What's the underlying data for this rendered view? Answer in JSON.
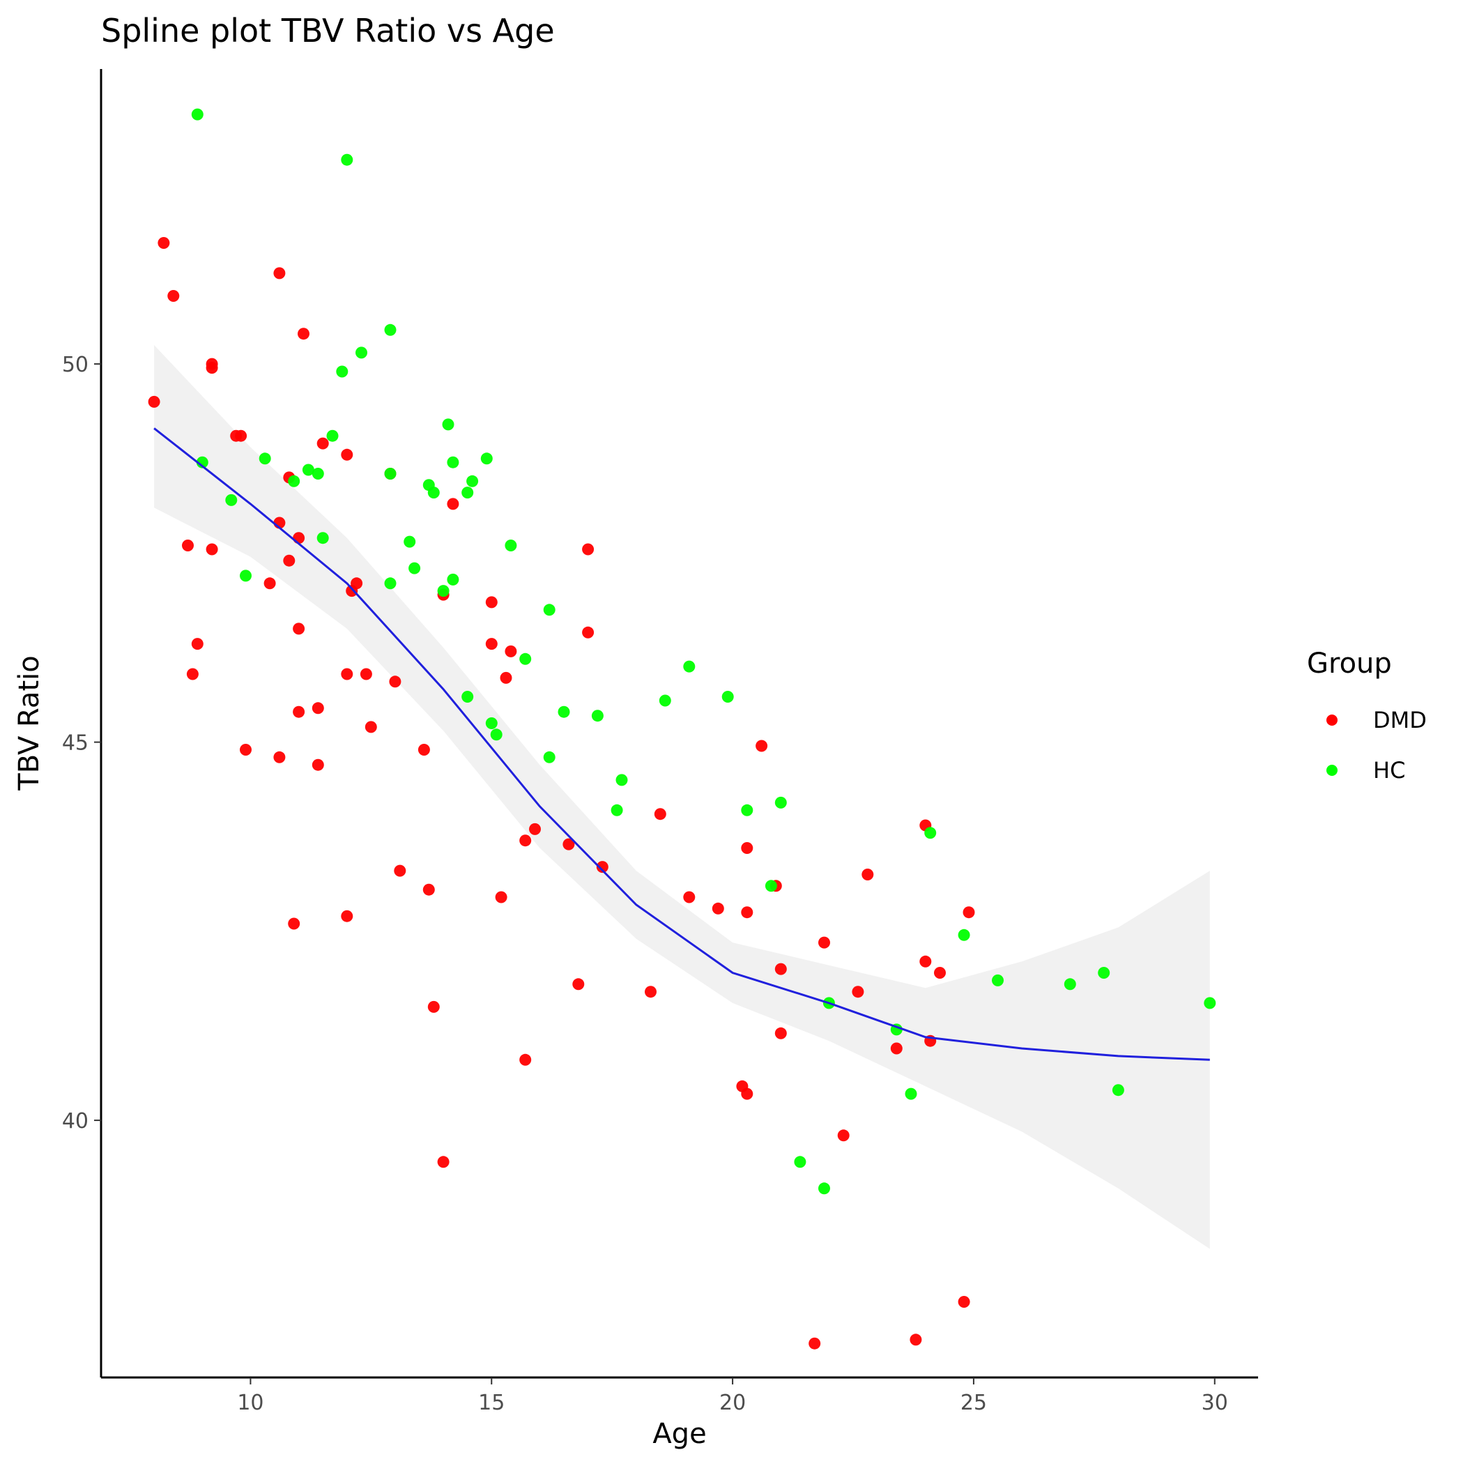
{
  "chart_data": {
    "type": "scatter",
    "title": "Spline plot TBV Ratio vs Age",
    "xlabel": "Age",
    "ylabel": "TBV Ratio",
    "xlim": [
      6.9,
      30.9
    ],
    "ylim": [
      36.6,
      53.9
    ],
    "x_ticks": [
      10,
      15,
      20,
      25,
      30
    ],
    "y_ticks": [
      40,
      45,
      50
    ],
    "x_tick_labels": [
      "10",
      "15",
      "20",
      "25",
      "30"
    ],
    "y_tick_labels": [
      "40",
      "45",
      "50"
    ],
    "grid": false,
    "legend": {
      "title": "Group",
      "position": "right",
      "entries": [
        "DMD",
        "HC"
      ]
    },
    "colors": {
      "DMD": "#ff0000",
      "HC": "#00ff00",
      "smooth": "#2020dd",
      "ribbon": "#ebebeb"
    },
    "series": [
      {
        "name": "DMD",
        "points": [
          [
            8.0,
            49.5
          ],
          [
            8.2,
            51.6
          ],
          [
            8.4,
            50.9
          ],
          [
            8.7,
            47.6
          ],
          [
            8.8,
            45.9
          ],
          [
            8.9,
            46.3
          ],
          [
            9.2,
            50.0
          ],
          [
            9.2,
            49.95
          ],
          [
            9.2,
            47.55
          ],
          [
            9.7,
            49.05
          ],
          [
            9.8,
            49.05
          ],
          [
            9.9,
            44.9
          ],
          [
            10.4,
            47.1
          ],
          [
            10.6,
            47.9
          ],
          [
            10.6,
            44.8
          ],
          [
            10.6,
            51.2
          ],
          [
            10.8,
            48.5
          ],
          [
            10.8,
            47.4
          ],
          [
            10.9,
            42.6
          ],
          [
            11.0,
            47.7
          ],
          [
            11.0,
            46.5
          ],
          [
            11.0,
            45.4
          ],
          [
            11.1,
            50.4
          ],
          [
            11.4,
            45.45
          ],
          [
            11.4,
            44.7
          ],
          [
            11.5,
            48.95
          ],
          [
            12.0,
            48.8
          ],
          [
            12.0,
            45.9
          ],
          [
            12.0,
            42.7
          ],
          [
            12.1,
            47.0
          ],
          [
            12.2,
            47.1
          ],
          [
            12.4,
            45.9
          ],
          [
            12.5,
            45.2
          ],
          [
            12.9,
            48.55
          ],
          [
            13.0,
            45.8
          ],
          [
            13.1,
            43.3
          ],
          [
            13.6,
            44.9
          ],
          [
            13.7,
            43.05
          ],
          [
            13.8,
            41.5
          ],
          [
            14.0,
            39.45
          ],
          [
            14.0,
            46.95
          ],
          [
            14.2,
            48.15
          ],
          [
            15.0,
            46.85
          ],
          [
            15.0,
            46.3
          ],
          [
            15.2,
            42.95
          ],
          [
            15.3,
            45.85
          ],
          [
            15.4,
            46.2
          ],
          [
            15.7,
            40.8
          ],
          [
            15.7,
            43.7
          ],
          [
            15.9,
            43.85
          ],
          [
            16.6,
            43.65
          ],
          [
            16.8,
            41.8
          ],
          [
            17.0,
            47.55
          ],
          [
            17.0,
            46.45
          ],
          [
            17.3,
            43.35
          ],
          [
            18.3,
            41.7
          ],
          [
            18.5,
            44.05
          ],
          [
            19.1,
            42.95
          ],
          [
            19.7,
            42.8
          ],
          [
            20.2,
            40.45
          ],
          [
            20.3,
            40.35
          ],
          [
            20.3,
            42.75
          ],
          [
            20.3,
            43.6
          ],
          [
            20.6,
            44.95
          ],
          [
            20.9,
            43.1
          ],
          [
            21.0,
            42.0
          ],
          [
            21.0,
            41.15
          ],
          [
            21.7,
            37.05
          ],
          [
            21.9,
            42.35
          ],
          [
            22.3,
            39.8
          ],
          [
            22.6,
            41.7
          ],
          [
            22.8,
            43.25
          ],
          [
            23.4,
            40.95
          ],
          [
            23.8,
            37.1
          ],
          [
            24.0,
            43.9
          ],
          [
            24.0,
            42.1
          ],
          [
            24.1,
            41.05
          ],
          [
            24.3,
            41.95
          ],
          [
            24.8,
            37.6
          ],
          [
            24.9,
            42.75
          ]
        ]
      },
      {
        "name": "HC",
        "points": [
          [
            8.9,
            53.3
          ],
          [
            9.0,
            48.7
          ],
          [
            9.6,
            48.2
          ],
          [
            9.9,
            47.2
          ],
          [
            10.3,
            48.75
          ],
          [
            10.9,
            48.45
          ],
          [
            11.2,
            48.6
          ],
          [
            11.4,
            48.55
          ],
          [
            11.5,
            47.7
          ],
          [
            11.7,
            49.05
          ],
          [
            11.9,
            49.9
          ],
          [
            12.0,
            52.7
          ],
          [
            12.3,
            50.15
          ],
          [
            12.9,
            48.55
          ],
          [
            12.9,
            47.1
          ],
          [
            12.9,
            50.45
          ],
          [
            13.3,
            47.65
          ],
          [
            13.4,
            47.3
          ],
          [
            13.7,
            48.4
          ],
          [
            13.8,
            48.3
          ],
          [
            14.0,
            47.0
          ],
          [
            14.1,
            49.2
          ],
          [
            14.2,
            48.7
          ],
          [
            14.2,
            47.15
          ],
          [
            14.5,
            48.3
          ],
          [
            14.5,
            45.6
          ],
          [
            14.6,
            48.45
          ],
          [
            14.9,
            48.75
          ],
          [
            15.0,
            45.25
          ],
          [
            15.1,
            45.1
          ],
          [
            15.4,
            47.6
          ],
          [
            15.7,
            46.1
          ],
          [
            16.2,
            46.75
          ],
          [
            16.2,
            44.8
          ],
          [
            16.5,
            45.4
          ],
          [
            17.2,
            45.35
          ],
          [
            17.6,
            44.1
          ],
          [
            17.7,
            44.5
          ],
          [
            18.6,
            45.55
          ],
          [
            19.1,
            46.0
          ],
          [
            19.9,
            45.6
          ],
          [
            20.3,
            44.1
          ],
          [
            20.8,
            43.1
          ],
          [
            21.0,
            44.2
          ],
          [
            21.4,
            39.45
          ],
          [
            21.9,
            39.1
          ],
          [
            22.0,
            41.55
          ],
          [
            23.4,
            41.2
          ],
          [
            23.7,
            40.35
          ],
          [
            24.1,
            43.8
          ],
          [
            24.8,
            42.45
          ],
          [
            25.5,
            41.85
          ],
          [
            27.0,
            41.8
          ],
          [
            27.7,
            41.95
          ],
          [
            28.0,
            40.4
          ],
          [
            29.9,
            41.55
          ]
        ]
      }
    ],
    "smooth": {
      "x": [
        8.0,
        10,
        12,
        14,
        16,
        18,
        20,
        22,
        24,
        26,
        28,
        29.9
      ],
      "y": [
        49.15,
        48.15,
        47.1,
        45.7,
        44.15,
        42.85,
        41.95,
        41.55,
        41.1,
        40.95,
        40.85,
        40.8
      ],
      "ci_lower": [
        48.1,
        47.45,
        46.5,
        45.15,
        43.6,
        42.4,
        41.55,
        41.05,
        40.45,
        39.85,
        39.1,
        38.3
      ],
      "ci_upper": [
        50.25,
        48.9,
        47.7,
        46.25,
        44.7,
        43.3,
        42.35,
        42.05,
        41.75,
        42.1,
        42.55,
        43.3
      ]
    }
  }
}
